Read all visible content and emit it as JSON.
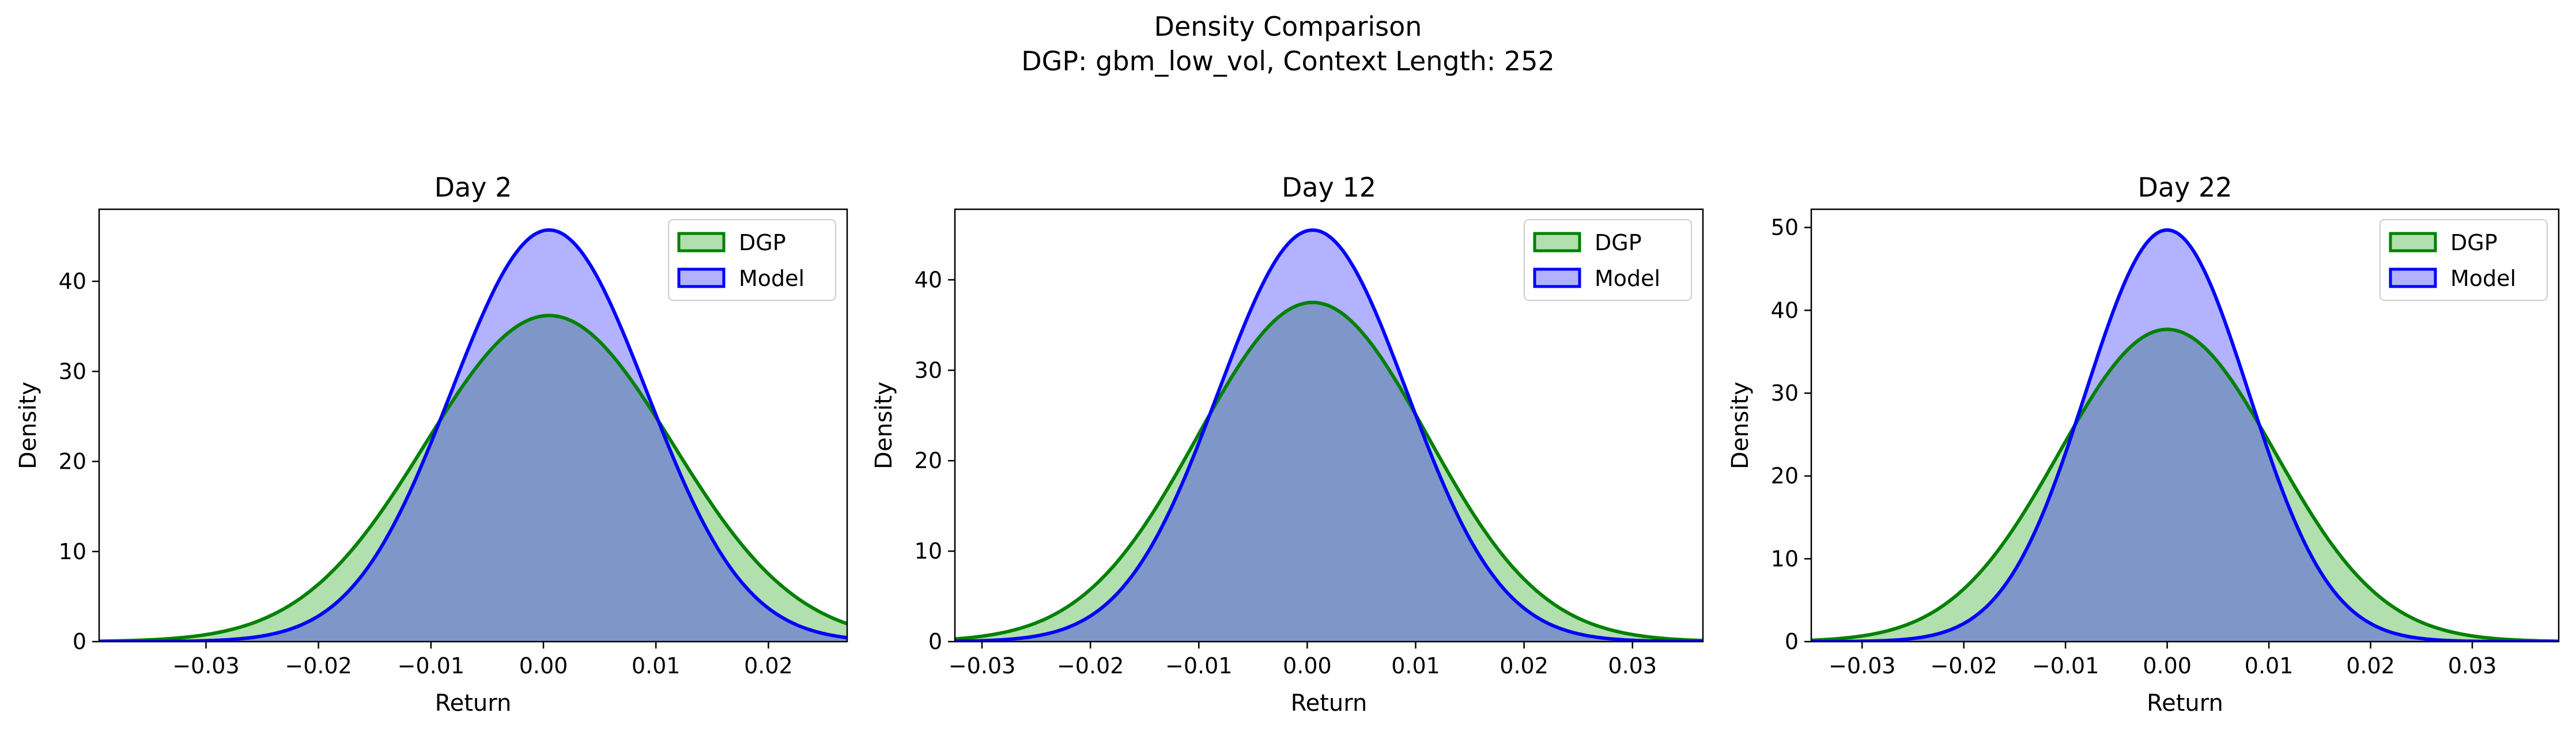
{
  "figure": {
    "title_line1": "Density Comparison",
    "title_line2": "DGP: gbm_low_vol, Context Length: 252"
  },
  "colors": {
    "dgp_line": "#008000",
    "dgp_fill": "#b2dfae",
    "model_line": "#0000ff",
    "model_fill": "#b2b2ff",
    "overlap_fill": "#7f97c8"
  },
  "chart_data": [
    {
      "type": "area",
      "title": "Day 2",
      "xlabel": "Return",
      "ylabel": "Density",
      "xlim": [
        -0.0395,
        0.027
      ],
      "ylim": [
        0,
        48
      ],
      "xticks": [
        -0.03,
        -0.02,
        -0.01,
        0.0,
        0.01,
        0.02
      ],
      "xtick_labels": [
        "−0.03",
        "−0.02",
        "−0.01",
        "0.00",
        "0.01",
        "0.02"
      ],
      "yticks": [
        0,
        10,
        20,
        30,
        40
      ],
      "grid": false,
      "legend": {
        "position": "top-right",
        "entries": [
          "DGP",
          "Model"
        ]
      },
      "series": [
        {
          "name": "DGP",
          "mean": 0.0005,
          "peak": 36.2,
          "sigma": 0.011
        },
        {
          "name": "Model",
          "mean": 0.0005,
          "peak": 45.7,
          "sigma": 0.0087
        }
      ]
    },
    {
      "type": "area",
      "title": "Day 12",
      "xlabel": "Return",
      "ylabel": "Density",
      "xlim": [
        -0.0325,
        0.0365
      ],
      "ylim": [
        0,
        47.8
      ],
      "xticks": [
        -0.03,
        -0.02,
        -0.01,
        0.0,
        0.01,
        0.02,
        0.03
      ],
      "xtick_labels": [
        "−0.03",
        "−0.02",
        "−0.01",
        "0.00",
        "0.01",
        "0.02",
        "0.03"
      ],
      "yticks": [
        0,
        10,
        20,
        30,
        40
      ],
      "grid": false,
      "legend": {
        "position": "top-right",
        "entries": [
          "DGP",
          "Model"
        ]
      },
      "series": [
        {
          "name": "DGP",
          "mean": 0.0005,
          "peak": 37.5,
          "sigma": 0.0106
        },
        {
          "name": "Model",
          "mean": 0.0005,
          "peak": 45.5,
          "sigma": 0.0087
        }
      ]
    },
    {
      "type": "area",
      "title": "Day 22",
      "xlabel": "Return",
      "ylabel": "Density",
      "xlim": [
        -0.035,
        0.0385
      ],
      "ylim": [
        0,
        52.2
      ],
      "xticks": [
        -0.03,
        -0.02,
        -0.01,
        0.0,
        0.01,
        0.02,
        0.03
      ],
      "xtick_labels": [
        "−0.03",
        "−0.02",
        "−0.01",
        "0.00",
        "0.01",
        "0.02",
        "0.03"
      ],
      "yticks": [
        0,
        10,
        20,
        30,
        40,
        50
      ],
      "grid": false,
      "legend": {
        "position": "top-right",
        "entries": [
          "DGP",
          "Model"
        ]
      },
      "series": [
        {
          "name": "DGP",
          "mean": 0.0,
          "peak": 37.7,
          "sigma": 0.0106
        },
        {
          "name": "Model",
          "mean": 0.0,
          "peak": 49.7,
          "sigma": 0.008
        }
      ]
    }
  ]
}
